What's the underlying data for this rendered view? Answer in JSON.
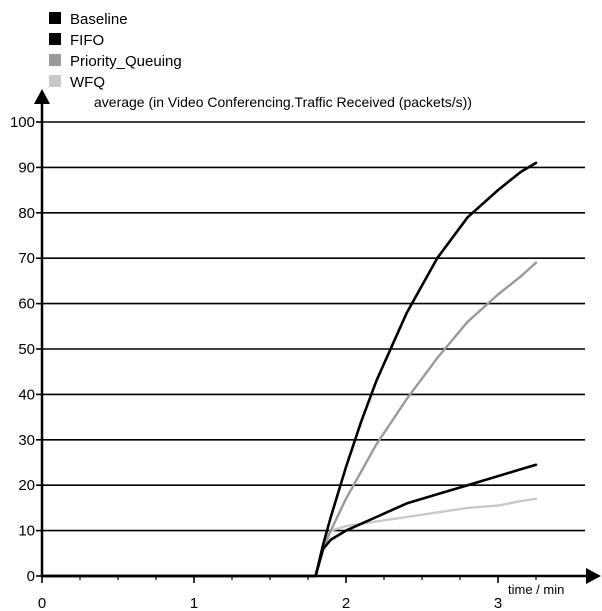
{
  "chart_data": {
    "type": "line",
    "title": "average (in Video Conferencing.Traffic Received (packets/s))",
    "xlabel": "time / min",
    "ylabel": "",
    "xlim": [
      0,
      3.5
    ],
    "ylim": [
      0,
      100
    ],
    "x_ticks": [
      0,
      1,
      2,
      3
    ],
    "y_ticks": [
      0,
      10,
      20,
      30,
      40,
      50,
      60,
      70,
      80,
      90,
      100
    ],
    "grid": "horizontal",
    "legend_position": "top-left",
    "series": [
      {
        "name": "Baseline",
        "color": "#000000",
        "points": [
          [
            0,
            0
          ],
          [
            1.8,
            0
          ],
          [
            1.85,
            7
          ],
          [
            1.9,
            13
          ],
          [
            2.0,
            24
          ],
          [
            2.1,
            34
          ],
          [
            2.2,
            43
          ],
          [
            2.4,
            58
          ],
          [
            2.6,
            70
          ],
          [
            2.8,
            79
          ],
          [
            3.0,
            85
          ],
          [
            3.15,
            89
          ],
          [
            3.25,
            91
          ]
        ]
      },
      {
        "name": "FIFO",
        "color": "#000000",
        "points": [
          [
            0,
            0
          ],
          [
            1.8,
            0
          ],
          [
            1.85,
            6
          ],
          [
            1.9,
            8
          ],
          [
            2.0,
            10
          ],
          [
            2.2,
            13
          ],
          [
            2.4,
            16
          ],
          [
            2.6,
            18
          ],
          [
            2.8,
            20
          ],
          [
            3.0,
            22
          ],
          [
            3.15,
            23.5
          ],
          [
            3.25,
            24.5
          ]
        ]
      },
      {
        "name": "Priority_Queuing",
        "color": "#9a9a9a",
        "points": [
          [
            1.85,
            6
          ],
          [
            1.9,
            10
          ],
          [
            2.0,
            17
          ],
          [
            2.2,
            29
          ],
          [
            2.4,
            39
          ],
          [
            2.6,
            48
          ],
          [
            2.8,
            56
          ],
          [
            3.0,
            62
          ],
          [
            3.15,
            66
          ],
          [
            3.25,
            69
          ]
        ]
      },
      {
        "name": "WFQ",
        "color": "#c8c8c8",
        "points": [
          [
            1.85,
            7
          ],
          [
            1.9,
            10
          ],
          [
            2.0,
            11
          ],
          [
            2.2,
            12
          ],
          [
            2.4,
            13
          ],
          [
            2.6,
            14
          ],
          [
            2.8,
            15
          ],
          [
            3.0,
            15.5
          ],
          [
            3.15,
            16.5
          ],
          [
            3.25,
            17
          ]
        ]
      }
    ]
  }
}
